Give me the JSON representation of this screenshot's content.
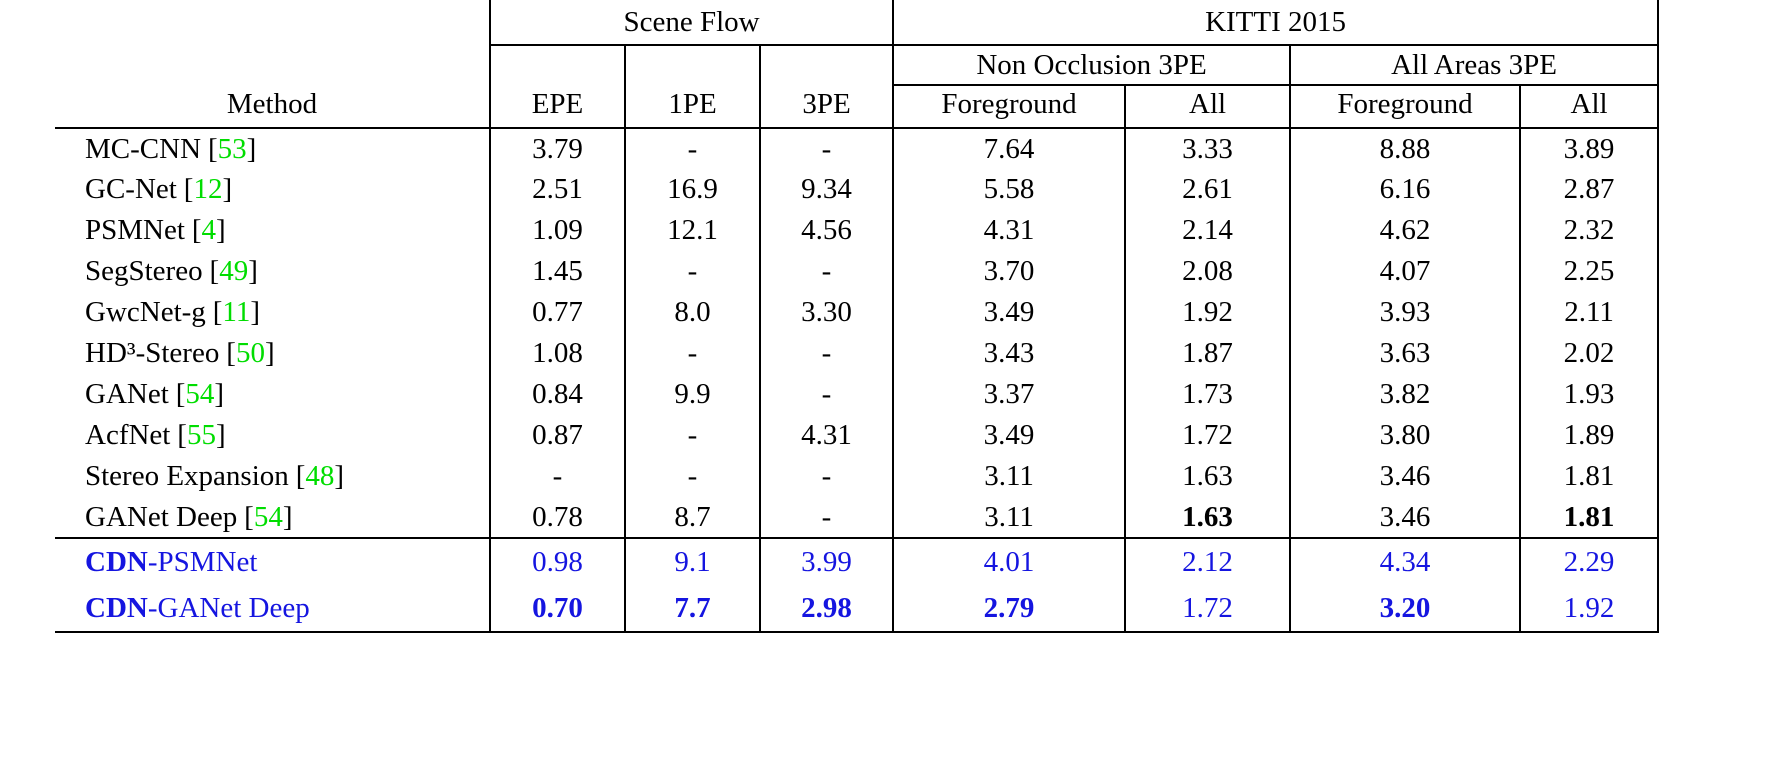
{
  "page": {
    "background": "#ffffff"
  },
  "colors": {
    "text": "#000000",
    "citation_green": "#00dd00",
    "highlight_blue": "#1515e0",
    "rule": "#000000"
  },
  "symbols": {
    "bracket_open": "[",
    "bracket_close": "]"
  },
  "header": {
    "method_label": "Method",
    "groups": [
      {
        "label": "Scene Flow",
        "colspan": 3
      },
      {
        "label": "KITTI 2015",
        "colspan": 4
      }
    ],
    "scene_flow_cols": [
      "EPE",
      "1PE",
      "3PE"
    ],
    "subgroups": [
      {
        "label": "Non Occlusion 3PE",
        "colspan": 2
      },
      {
        "label": "All Areas 3PE",
        "colspan": 2
      }
    ],
    "kitti_cols": [
      "Foreground",
      "All",
      "Foreground",
      "All"
    ]
  },
  "rows": [
    {
      "method_bold": "",
      "method": "MC-CNN",
      "citation": "53",
      "section": "main",
      "highlight": false,
      "values": [
        "3.79",
        "-",
        "-",
        "7.64",
        "3.33",
        "8.88",
        "3.89"
      ],
      "bold_values": [
        false,
        false,
        false,
        false,
        false,
        false,
        false
      ]
    },
    {
      "method_bold": "",
      "method": "GC-Net",
      "citation": "12",
      "section": "main",
      "highlight": false,
      "values": [
        "2.51",
        "16.9",
        "9.34",
        "5.58",
        "2.61",
        "6.16",
        "2.87"
      ],
      "bold_values": [
        false,
        false,
        false,
        false,
        false,
        false,
        false
      ]
    },
    {
      "method_bold": "",
      "method": "PSMNet",
      "citation": "4",
      "section": "main",
      "highlight": false,
      "values": [
        "1.09",
        "12.1",
        "4.56",
        "4.31",
        "2.14",
        "4.62",
        "2.32"
      ],
      "bold_values": [
        false,
        false,
        false,
        false,
        false,
        false,
        false
      ]
    },
    {
      "method_bold": "",
      "method": "SegStereo",
      "citation": "49",
      "section": "main",
      "highlight": false,
      "values": [
        "1.45",
        "-",
        "-",
        "3.70",
        "2.08",
        "4.07",
        "2.25"
      ],
      "bold_values": [
        false,
        false,
        false,
        false,
        false,
        false,
        false
      ]
    },
    {
      "method_bold": "",
      "method": "GwcNet-g",
      "citation": "11",
      "section": "main",
      "highlight": false,
      "values": [
        "0.77",
        "8.0",
        "3.30",
        "3.49",
        "1.92",
        "3.93",
        "2.11"
      ],
      "bold_values": [
        false,
        false,
        false,
        false,
        false,
        false,
        false
      ]
    },
    {
      "method_bold": "",
      "method": "HD³-Stereo",
      "citation": "50",
      "section": "main",
      "highlight": false,
      "values": [
        "1.08",
        "-",
        "-",
        "3.43",
        "1.87",
        "3.63",
        "2.02"
      ],
      "bold_values": [
        false,
        false,
        false,
        false,
        false,
        false,
        false
      ]
    },
    {
      "method_bold": "",
      "method": "GANet",
      "citation": "54",
      "section": "main",
      "highlight": false,
      "values": [
        "0.84",
        "9.9",
        "-",
        "3.37",
        "1.73",
        "3.82",
        "1.93"
      ],
      "bold_values": [
        false,
        false,
        false,
        false,
        false,
        false,
        false
      ]
    },
    {
      "method_bold": "",
      "method": "AcfNet",
      "citation": "55",
      "section": "main",
      "highlight": false,
      "values": [
        "0.87",
        "-",
        "4.31",
        "3.49",
        "1.72",
        "3.80",
        "1.89"
      ],
      "bold_values": [
        false,
        false,
        false,
        false,
        false,
        false,
        false
      ]
    },
    {
      "method_bold": "",
      "method": "Stereo Expansion",
      "citation": "48",
      "section": "main",
      "highlight": false,
      "values": [
        "-",
        "-",
        "-",
        "3.11",
        "1.63",
        "3.46",
        "1.81"
      ],
      "bold_values": [
        false,
        false,
        false,
        false,
        false,
        false,
        false
      ]
    },
    {
      "method_bold": "",
      "method": "GANet Deep",
      "citation": "54",
      "section": "main",
      "highlight": false,
      "values": [
        "0.78",
        "8.7",
        "-",
        "3.11",
        "1.63",
        "3.46",
        "1.81"
      ],
      "bold_values": [
        false,
        false,
        false,
        false,
        true,
        false,
        true
      ]
    },
    {
      "method_bold": "CDN",
      "method": "-PSMNet",
      "citation": "",
      "section": "cdn",
      "highlight": true,
      "values": [
        "0.98",
        "9.1",
        "3.99",
        "4.01",
        "2.12",
        "4.34",
        "2.29"
      ],
      "bold_values": [
        false,
        false,
        false,
        false,
        false,
        false,
        false
      ]
    },
    {
      "method_bold": "CDN",
      "method": "-GANet Deep",
      "citation": "",
      "section": "cdn",
      "highlight": true,
      "values": [
        "0.70",
        "7.7",
        "2.98",
        "2.79",
        "1.72",
        "3.20",
        "1.92"
      ],
      "bold_values": [
        true,
        true,
        true,
        true,
        false,
        true,
        false
      ]
    }
  ]
}
